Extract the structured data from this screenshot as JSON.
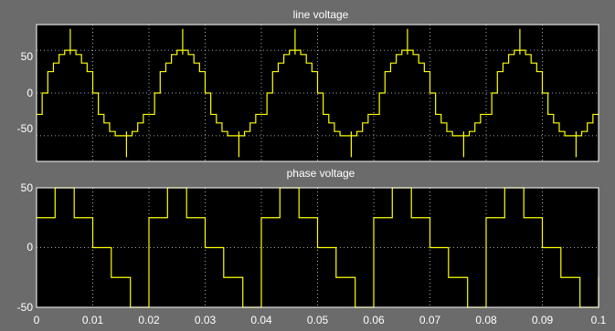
{
  "chart_data": [
    {
      "type": "line",
      "title": "line voltage",
      "xlim": [
        0,
        0.1
      ],
      "ylim": [
        -80,
        80
      ],
      "yticks": [
        50,
        0,
        -50
      ],
      "xticks": [],
      "grid": true,
      "color": "#ffff00",
      "background": "#000000",
      "frequency_hz": 50,
      "series": [
        {
          "steps_per_period": [
            [
              0.0,
              -25
            ],
            [
              0.001,
              0
            ],
            [
              0.002,
              25
            ],
            [
              0.003,
              35
            ],
            [
              0.004,
              45
            ],
            [
              0.005,
              50
            ],
            [
              0.007,
              45
            ],
            [
              0.008,
              35
            ],
            [
              0.009,
              25
            ],
            [
              0.01,
              0
            ],
            [
              0.011,
              -25
            ],
            [
              0.012,
              -35
            ],
            [
              0.013,
              -45
            ],
            [
              0.014,
              -50
            ],
            [
              0.017,
              -45
            ],
            [
              0.018,
              -35
            ],
            [
              0.019,
              -25
            ],
            [
              0.02,
              -25
            ]
          ],
          "spikes_per_period": [
            [
              0.006,
              75
            ],
            [
              0.016,
              -75
            ]
          ]
        }
      ]
    },
    {
      "type": "line",
      "title": "phase voltage",
      "xlim": [
        0,
        0.1
      ],
      "ylim": [
        -50,
        50
      ],
      "yticks": [
        50,
        0,
        -50
      ],
      "xticks": [
        0,
        0.01,
        0.02,
        0.03,
        0.04,
        0.05,
        0.06,
        0.07,
        0.08,
        0.09,
        0.1
      ],
      "xtick_labels": [
        "0",
        "0.01",
        "0.02",
        "0.03",
        "0.04",
        "0.05",
        "0.06",
        "0.07",
        "0.08",
        "0.09",
        "0.1"
      ],
      "grid": true,
      "color": "#ffff00",
      "background": "#000000",
      "frequency_hz": 50,
      "series": [
        {
          "steps_per_period": [
            [
              0.0,
              25
            ],
            [
              0.0033,
              50
            ],
            [
              0.0067,
              25
            ],
            [
              0.01,
              0
            ],
            [
              0.0133,
              -25
            ],
            [
              0.0167,
              -50
            ],
            [
              0.02,
              -25
            ]
          ],
          "spikes_per_period": []
        }
      ]
    }
  ]
}
